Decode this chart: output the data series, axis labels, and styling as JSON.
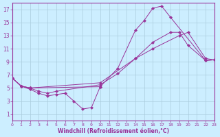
{
  "xlabel": "Windchill (Refroidissement éolien,°C)",
  "bg_color": "#cceeff",
  "grid_color": "#aaccdd",
  "line_color": "#993399",
  "xmin": 0,
  "xmax": 23,
  "ymin": 0,
  "ymax": 18,
  "yticks": [
    1,
    3,
    5,
    7,
    9,
    11,
    13,
    15,
    17
  ],
  "xticks": [
    0,
    1,
    2,
    3,
    4,
    5,
    6,
    7,
    8,
    9,
    10,
    11,
    12,
    13,
    14,
    15,
    16,
    17,
    18,
    19,
    20,
    21,
    22,
    23
  ],
  "line1_x": [
    0,
    1,
    2,
    10,
    12,
    14,
    15,
    16,
    17,
    18,
    22,
    23
  ],
  "line1_y": [
    6.5,
    5.3,
    5.0,
    5.2,
    8.0,
    13.8,
    15.3,
    17.2,
    17.5,
    15.8,
    9.2,
    9.3
  ],
  "line2_x": [
    0,
    1,
    2,
    3,
    4,
    5,
    10,
    12,
    14,
    16,
    18,
    19,
    20,
    22,
    23
  ],
  "line2_y": [
    6.5,
    5.3,
    5.0,
    4.5,
    4.2,
    4.5,
    5.5,
    7.2,
    9.5,
    12.0,
    13.5,
    13.5,
    11.5,
    9.2,
    9.3
  ],
  "line3_x": [
    0,
    1,
    2,
    10,
    14,
    16,
    19,
    20,
    22,
    23
  ],
  "line3_y": [
    6.5,
    5.3,
    5.0,
    5.8,
    9.5,
    11.0,
    13.0,
    13.5,
    9.5,
    9.3
  ],
  "line4_x": [
    0,
    1,
    2,
    3,
    4,
    5,
    6,
    7,
    8,
    9,
    10
  ],
  "line4_y": [
    6.5,
    5.3,
    4.8,
    4.2,
    3.8,
    4.0,
    4.2,
    3.0,
    1.8,
    2.0,
    5.2
  ]
}
